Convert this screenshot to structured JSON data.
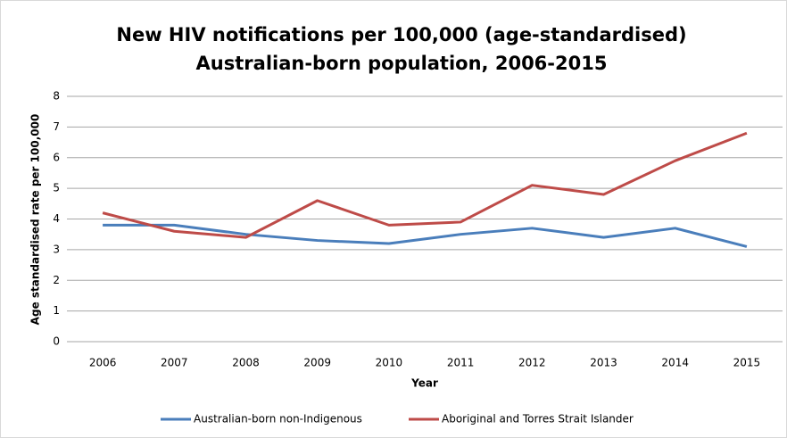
{
  "chart_data": {
    "type": "line",
    "title": [
      "New HIV notifications per 100,000 (age-standardised)",
      "Australian-born population, 2006-2015"
    ],
    "xlabel": "Year",
    "ylabel": "Age standardised  rate per 100,000",
    "categories": [
      "2006",
      "2007",
      "2008",
      "2009",
      "2010",
      "2011",
      "2012",
      "2013",
      "2014",
      "2015"
    ],
    "series": [
      {
        "name": "Australian-born non-Indigenous",
        "color": "#4a7ebb",
        "values": [
          3.8,
          3.8,
          3.5,
          3.3,
          3.2,
          3.5,
          3.7,
          3.4,
          3.7,
          3.1
        ]
      },
      {
        "name": "Aboriginal and Torres Strait Islander",
        "color": "#be4b48",
        "values": [
          4.2,
          3.6,
          3.4,
          4.6,
          3.8,
          3.9,
          5.1,
          4.8,
          5.9,
          6.8
        ]
      }
    ],
    "ylim": [
      0,
      8
    ],
    "yticks": [
      0,
      1,
      2,
      3,
      4,
      5,
      6,
      7,
      8
    ],
    "grid": true,
    "legend": "bottom"
  }
}
